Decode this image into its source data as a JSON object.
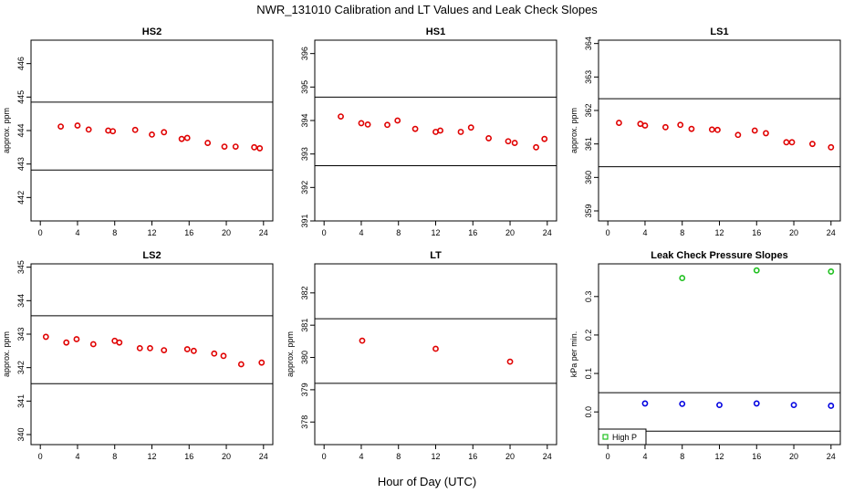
{
  "figure": {
    "title": "NWR_131010  Calibration and LT Values and Leak Check Slopes",
    "xlabel": "Hour of Day (UTC)"
  },
  "chart_data": [
    {
      "type": "scatter",
      "title": "HS2",
      "ylabel": "approx. ppm",
      "xlim": [
        -1,
        25
      ],
      "ylim": [
        441.3,
        446.7
      ],
      "xticks": [
        0,
        4,
        8,
        12,
        16,
        20,
        24
      ],
      "yticks": [
        442,
        443,
        444,
        445,
        446
      ],
      "hlines": [
        444.85,
        442.82
      ],
      "point_color": "#e00000",
      "series": [
        {
          "x": [
            2.2,
            4.0,
            5.2,
            7.3,
            7.8,
            10.2,
            12.0,
            13.3,
            15.2,
            15.8,
            18.0,
            19.8,
            21.0,
            23.0,
            23.6
          ],
          "y": [
            444.12,
            444.15,
            444.03,
            444.0,
            443.98,
            444.02,
            443.88,
            443.95,
            443.75,
            443.78,
            443.63,
            443.52,
            443.52,
            443.5,
            443.47
          ]
        }
      ]
    },
    {
      "type": "scatter",
      "title": "HS1",
      "ylabel": "",
      "xlim": [
        -1,
        25
      ],
      "ylim": [
        391.0,
        396.4
      ],
      "xticks": [
        0,
        4,
        8,
        12,
        16,
        20,
        24
      ],
      "yticks": [
        391,
        392,
        393,
        394,
        395,
        396
      ],
      "hlines": [
        394.7,
        392.65
      ],
      "point_color": "#e00000",
      "series": [
        {
          "x": [
            1.8,
            4.0,
            4.7,
            6.8,
            7.9,
            9.8,
            12.0,
            12.5,
            14.7,
            15.8,
            17.7,
            19.8,
            20.5,
            22.8,
            23.7
          ],
          "y": [
            394.12,
            393.92,
            393.88,
            393.87,
            394.0,
            393.75,
            393.66,
            393.7,
            393.66,
            393.79,
            393.47,
            393.38,
            393.33,
            393.2,
            393.45
          ]
        }
      ]
    },
    {
      "type": "scatter",
      "title": "LS1",
      "ylabel": "approx. ppm",
      "xlim": [
        -1,
        25
      ],
      "ylim": [
        358.7,
        364.1
      ],
      "xticks": [
        0,
        4,
        8,
        12,
        16,
        20,
        24
      ],
      "yticks": [
        359,
        360,
        361,
        362,
        363,
        364
      ],
      "hlines": [
        362.35,
        360.32
      ],
      "point_color": "#e00000",
      "series": [
        {
          "x": [
            1.2,
            3.5,
            4.0,
            6.2,
            7.8,
            9.0,
            11.2,
            11.8,
            14.0,
            15.8,
            17.0,
            19.2,
            19.8,
            22.0,
            24.0
          ],
          "y": [
            361.63,
            361.6,
            361.55,
            361.5,
            361.57,
            361.45,
            361.43,
            361.42,
            361.27,
            361.4,
            361.32,
            361.05,
            361.05,
            361.0,
            360.9
          ]
        }
      ]
    },
    {
      "type": "scatter",
      "title": "LS2",
      "ylabel": "approx. ppm",
      "xlim": [
        -1,
        25
      ],
      "ylim": [
        339.7,
        345.1
      ],
      "xticks": [
        0,
        4,
        8,
        12,
        16,
        20,
        24
      ],
      "yticks": [
        340,
        341,
        342,
        343,
        344,
        345
      ],
      "hlines": [
        343.55,
        341.52
      ],
      "point_color": "#e00000",
      "series": [
        {
          "x": [
            0.6,
            2.8,
            3.9,
            5.7,
            8.0,
            8.5,
            10.7,
            11.8,
            13.3,
            15.8,
            16.5,
            18.7,
            19.7,
            21.6,
            23.8
          ],
          "y": [
            342.92,
            342.75,
            342.85,
            342.7,
            342.8,
            342.75,
            342.58,
            342.58,
            342.52,
            342.55,
            342.5,
            342.42,
            342.35,
            342.1,
            342.15
          ]
        }
      ]
    },
    {
      "type": "scatter",
      "title": "LT",
      "ylabel": "approx. ppm",
      "xlim": [
        -1,
        25
      ],
      "ylim": [
        377.3,
        382.9
      ],
      "xticks": [
        0,
        4,
        8,
        12,
        16,
        20,
        24
      ],
      "yticks": [
        378,
        379,
        380,
        381,
        382
      ],
      "hlines": [
        381.2,
        379.2
      ],
      "point_color": "#e00000",
      "series": [
        {
          "x": [
            4.1,
            12.0,
            20.0
          ],
          "y": [
            380.52,
            380.27,
            379.87
          ]
        }
      ]
    },
    {
      "type": "scatter",
      "title": "Leak Check Pressure Slopes",
      "ylabel": "kPa per min.",
      "xlim": [
        -1,
        25
      ],
      "ylim": [
        -0.085,
        0.385
      ],
      "xticks": [
        0,
        4,
        8,
        12,
        16,
        20,
        24
      ],
      "yticks": [
        0.0,
        0.1,
        0.2,
        0.3
      ],
      "hlines": [
        0.05,
        -0.05
      ],
      "legend": {
        "position": "bottom-left",
        "entries": [
          "High P"
        ]
      },
      "series": [
        {
          "name": "High P",
          "color": "#20c020",
          "x": [
            8.0,
            16.0,
            24.0
          ],
          "y": [
            0.348,
            0.368,
            0.365
          ]
        },
        {
          "color": "#0000e0",
          "x": [
            4.0,
            8.0,
            12.0,
            16.0,
            20.0,
            24.0
          ],
          "y": [
            0.022,
            0.021,
            0.018,
            0.022,
            0.018,
            0.016
          ]
        }
      ]
    }
  ]
}
